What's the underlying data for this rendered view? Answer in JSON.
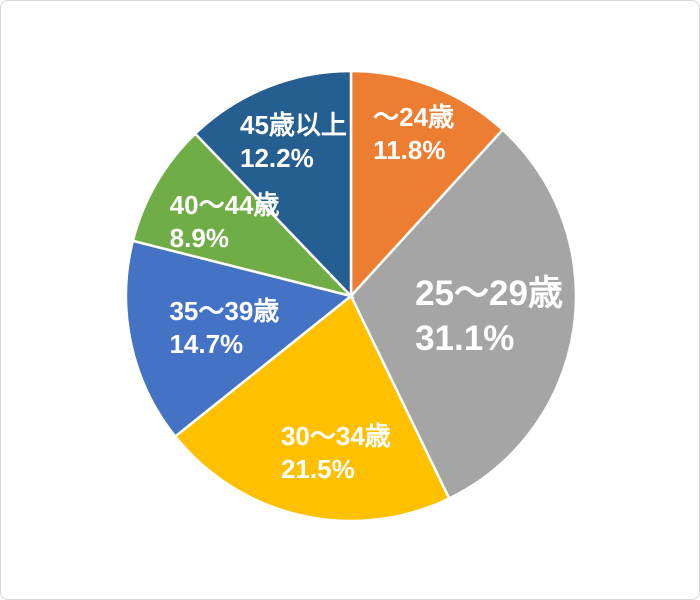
{
  "page": {
    "background_color": "#FFFFFF",
    "border_color": "#D7D7D7"
  },
  "chart_data": {
    "type": "pie",
    "title": "",
    "categories": [
      "～24歳",
      "25～29歳",
      "30～34歳",
      "35～39歳",
      "40～44歳",
      "45歳以上"
    ],
    "values": [
      11.8,
      31.1,
      21.5,
      14.7,
      8.9,
      12.2
    ],
    "value_labels": [
      "11.8%",
      "31.1%",
      "21.5%",
      "14.7%",
      "8.9%",
      "12.2%"
    ],
    "colors": [
      "#ED7D31",
      "#A5A5A5",
      "#FFC000",
      "#4472C4",
      "#70AD47",
      "#255E91"
    ],
    "label_color": "#FFFFFF",
    "label_position": "inside",
    "start_angle_deg": 0,
    "direction": "clockwise",
    "legend": "none",
    "emphasis_index": 1
  }
}
